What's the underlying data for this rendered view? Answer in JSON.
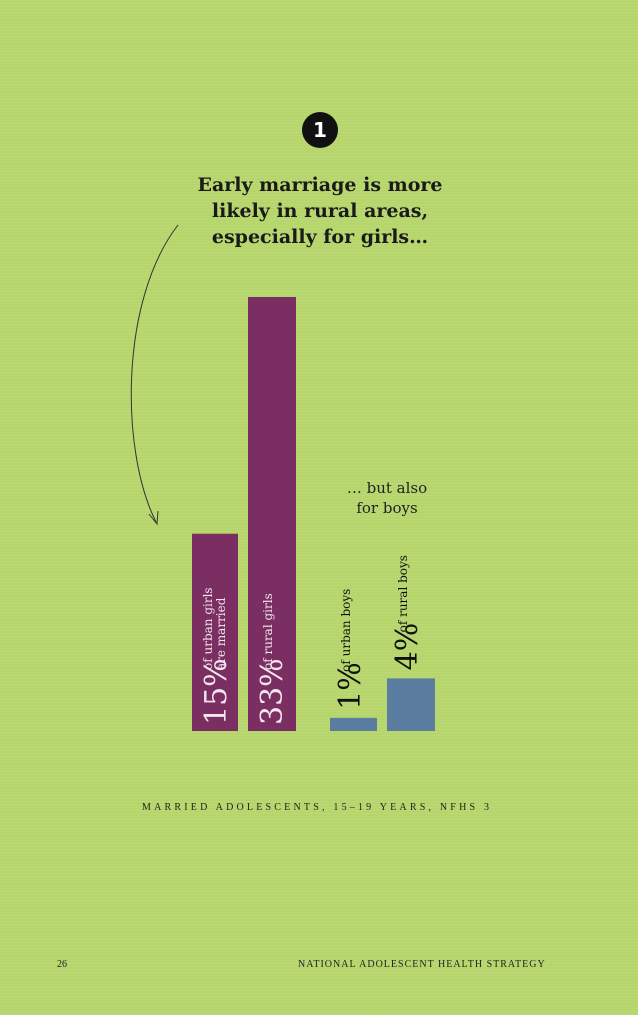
{
  "badge": "1",
  "title": "Early marriage is more\nlikely in rural areas,\nespecially for girls…",
  "note": "… but also\nfor boys",
  "source": "MARRIED ADOLESCENTS, 15–19 YEARS, NFHS 3",
  "page_number": "26",
  "footer": "NATIONAL ADOLESCENT HEALTH STRATEGY",
  "colors": {
    "background": "#b6d66c",
    "girls": "#7a2e62",
    "boys": "#5b7da0"
  },
  "chart_data": {
    "type": "bar",
    "categories": [
      "urban girls",
      "rural girls",
      "urban boys",
      "rural boys"
    ],
    "values": [
      15,
      33,
      1,
      4
    ],
    "unit": "%",
    "labels": [
      {
        "value": "15%",
        "text": [
          "of urban girls",
          "are married"
        ]
      },
      {
        "value": "33%",
        "text": [
          "of rural girls"
        ]
      },
      {
        "value": "1%",
        "text": [
          "of urban boys"
        ]
      },
      {
        "value": "4%",
        "text": [
          "of rural boys"
        ]
      }
    ],
    "ylim": [
      0,
      33
    ]
  }
}
